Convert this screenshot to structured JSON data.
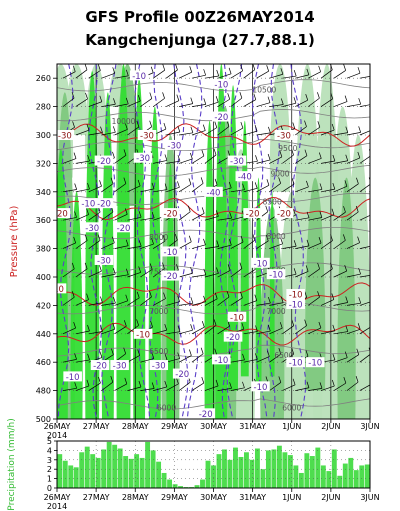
{
  "chart_data": [
    {
      "type": "heatmap",
      "title": "GFS Profile 00Z26MAY2014",
      "subtitle": "Kangchenjunga (27.7,88.1)",
      "ylabel": "Pressure (hPa)",
      "ylim": [
        500,
        250
      ],
      "yticks": [
        260,
        280,
        300,
        320,
        340,
        360,
        380,
        400,
        420,
        440,
        460,
        480,
        500
      ],
      "xticks": [
        "26MAY",
        "27MAY",
        "28MAY",
        "29MAY",
        "30MAY",
        "31MAY",
        "1JUN",
        "2JUN",
        "3JUN"
      ],
      "year_label": "2014",
      "colors": {
        "humidity_bright": "#33dd33",
        "humidity_mid": "#7ec87e",
        "humidity_light": "#b8e0b8",
        "isotherm": "#cc2222",
        "isotherm_dashed": "#5a3ec8",
        "height_contour": "#808080"
      },
      "isotherm_labels": [
        "-10",
        "-20",
        "-30",
        "-40"
      ],
      "height_labels": [
        "10500",
        "10000",
        "9500",
        "9000",
        "8500",
        "8000",
        "7500",
        "7000",
        "6500",
        "6000"
      ],
      "temperature_line_labels": [
        {
          "value": "-30",
          "x": 26.2,
          "p": 300
        },
        {
          "value": "-30",
          "x": 28.3,
          "p": 300
        },
        {
          "value": "-30",
          "x": 31.8,
          "p": 300
        },
        {
          "value": "-20",
          "x": 26.1,
          "p": 355
        },
        {
          "value": "-20",
          "x": 28.9,
          "p": 355
        },
        {
          "value": "-20",
          "x": 31.0,
          "p": 355
        },
        {
          "value": "-20",
          "x": 31.8,
          "p": 355
        },
        {
          "value": "-10",
          "x": 26.0,
          "p": 408
        },
        {
          "value": "-10",
          "x": 28.2,
          "p": 440
        },
        {
          "value": "-10",
          "x": 30.6,
          "p": 428
        },
        {
          "value": "-10",
          "x": 32.1,
          "p": 412
        }
      ],
      "dashed_labels": [
        {
          "value": "-10",
          "x": 28.1,
          "p": 258
        },
        {
          "value": "-10",
          "x": 30.2,
          "p": 264
        },
        {
          "value": "-20",
          "x": 30.2,
          "p": 287
        },
        {
          "value": "-20",
          "x": 27.2,
          "p": 318
        },
        {
          "value": "-30",
          "x": 28.2,
          "p": 316
        },
        {
          "value": "-30",
          "x": 29.0,
          "p": 307
        },
        {
          "value": "-30",
          "x": 30.6,
          "p": 318
        },
        {
          "value": "-40",
          "x": 30.8,
          "p": 329
        },
        {
          "value": "-40",
          "x": 30.0,
          "p": 340
        },
        {
          "value": "-20",
          "x": 27.2,
          "p": 348
        },
        {
          "value": "-10",
          "x": 26.8,
          "p": 348
        },
        {
          "value": "-30",
          "x": 27.2,
          "p": 388
        },
        {
          "value": "-30",
          "x": 26.9,
          "p": 365
        },
        {
          "value": "-20",
          "x": 27.7,
          "p": 365
        },
        {
          "value": "-10",
          "x": 28.9,
          "p": 382
        },
        {
          "value": "-20",
          "x": 28.9,
          "p": 399
        },
        {
          "value": "-10",
          "x": 31.2,
          "p": 390
        },
        {
          "value": "-10",
          "x": 31.6,
          "p": 398
        },
        {
          "value": "-20",
          "x": 30.5,
          "p": 442
        },
        {
          "value": "-20",
          "x": 29.2,
          "p": 468
        },
        {
          "value": "-20",
          "x": 27.1,
          "p": 462
        },
        {
          "value": "-30",
          "x": 27.6,
          "p": 462
        },
        {
          "value": "-30",
          "x": 28.6,
          "p": 462
        },
        {
          "value": "-10",
          "x": 26.4,
          "p": 470
        },
        {
          "value": "-10",
          "x": 32.1,
          "p": 419
        },
        {
          "value": "-10",
          "x": 32.1,
          "p": 460
        },
        {
          "value": "-10",
          "x": 31.2,
          "p": 477
        },
        {
          "value": "-10",
          "x": 32.6,
          "p": 460
        },
        {
          "value": "-20",
          "x": 29.8,
          "p": 496
        },
        {
          "value": "-10",
          "x": 30.2,
          "p": 458
        }
      ],
      "height_contour_labels": [
        {
          "value": "10500",
          "x": 31.3,
          "p": 268
        },
        {
          "value": "10000",
          "x": 27.7,
          "p": 290
        },
        {
          "value": "9500",
          "x": 31.9,
          "p": 309
        },
        {
          "value": "9000",
          "x": 31.7,
          "p": 327
        },
        {
          "value": "8500",
          "x": 31.5,
          "p": 347
        },
        {
          "value": "8000",
          "x": 28.6,
          "p": 372
        },
        {
          "value": "8000",
          "x": 31.6,
          "p": 371
        },
        {
          "value": "7500",
          "x": 28.6,
          "p": 396
        },
        {
          "value": "7500",
          "x": 31.6,
          "p": 395
        },
        {
          "value": "7000",
          "x": 28.6,
          "p": 424
        },
        {
          "value": "7000",
          "x": 31.6,
          "p": 424
        },
        {
          "value": "6500",
          "x": 28.6,
          "p": 452
        },
        {
          "value": "6500",
          "x": 31.8,
          "p": 455
        },
        {
          "value": "6000",
          "x": 28.8,
          "p": 492
        },
        {
          "value": "6000",
          "x": 32.0,
          "p": 492
        }
      ],
      "grid": true
    },
    {
      "type": "bar",
      "ylabel": "Precipitation (mm/h)",
      "ylim": [
        0,
        5
      ],
      "yticks": [
        0,
        1,
        2,
        3,
        4,
        5
      ],
      "xticks": [
        "26MAY",
        "27MAY",
        "28MAY",
        "29MAY",
        "30MAY",
        "31MAY",
        "1JUN",
        "2JUN",
        "3JUN"
      ],
      "year_label": "2014",
      "bar_color": "#4edd4e",
      "values": [
        3.6,
        2.9,
        2.4,
        2.2,
        3.8,
        4.4,
        3.6,
        3.2,
        4.1,
        4.9,
        4.6,
        4.2,
        3.4,
        3.1,
        3.6,
        3.2,
        4.9,
        4.0,
        2.8,
        1.6,
        0.9,
        0.4,
        0.2,
        0.1,
        0.1,
        0.3,
        0.9,
        2.9,
        2.4,
        3.6,
        4.1,
        3.0,
        4.3,
        3.3,
        3.8,
        3.0,
        4.2,
        2.0,
        4.0,
        4.1,
        4.5,
        3.8,
        3.5,
        2.4,
        1.6,
        3.7,
        3.4,
        4.3,
        2.4,
        1.8,
        4.1,
        1.3,
        2.6,
        3.2,
        1.9,
        2.4,
        2.5
      ]
    }
  ]
}
